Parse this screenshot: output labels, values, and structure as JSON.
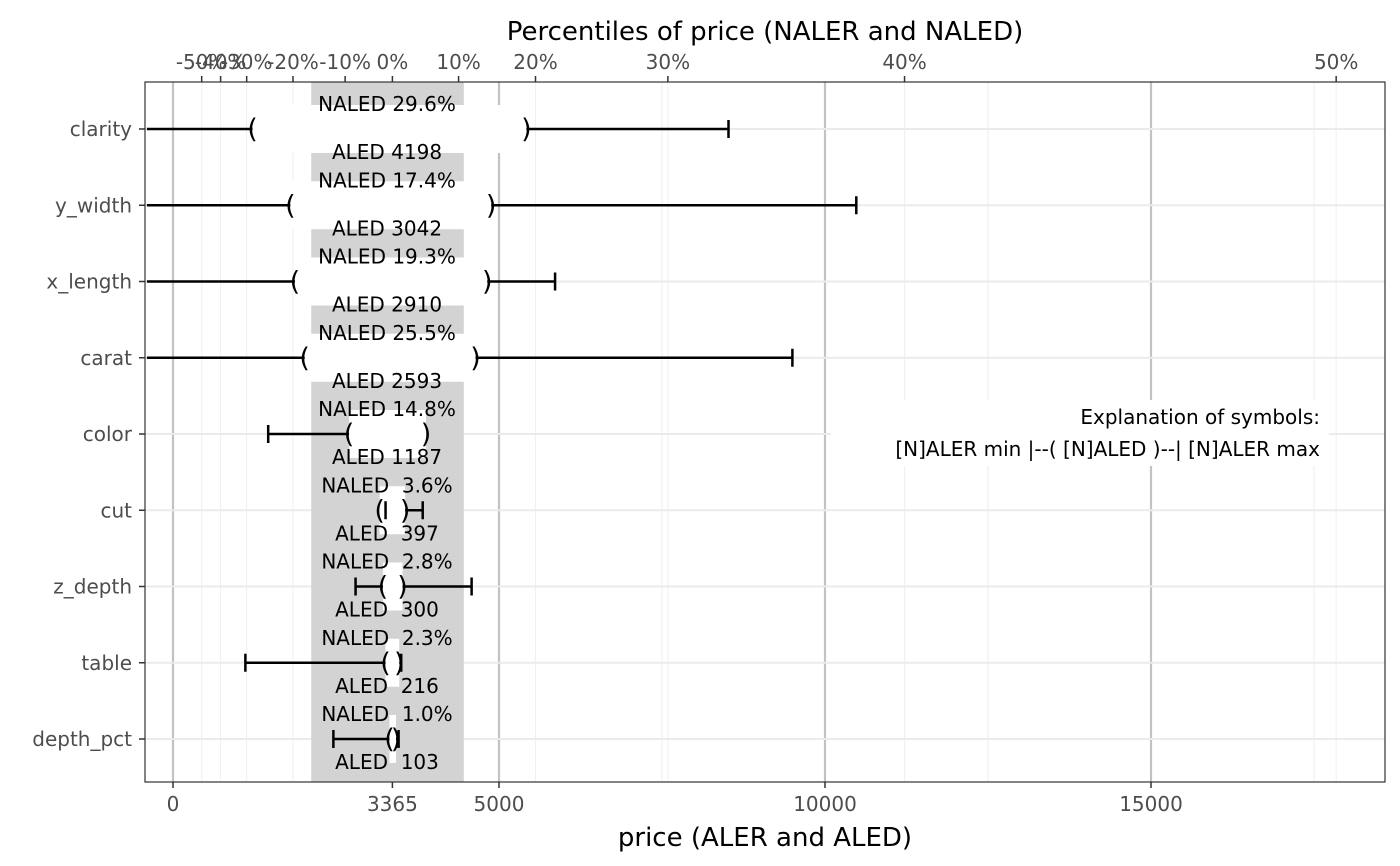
{
  "chart_data": {
    "type": "ale_range",
    "title": "Percentiles of price (NALER and NALED)",
    "xlabel": "price (ALER and ALED)",
    "xlim": [
      -400,
      18600
    ],
    "x_ticks": [
      0,
      3365,
      5000,
      10000,
      15000
    ],
    "x_tick_labels": [
      "0",
      "3365",
      "5000",
      "10000",
      "15000"
    ],
    "major_grid_x": [
      0,
      5000,
      10000,
      15000
    ],
    "minor_grid_x": [
      2500,
      7500,
      12500,
      17500
    ],
    "median": 3365,
    "aled_band": [
      2120,
      4460
    ],
    "top_ticks": [
      {
        "label": "-50%",
        "value": 440
      },
      {
        "label": "-40%",
        "value": 730
      },
      {
        "label": "-30%",
        "value": 1130
      },
      {
        "label": "-20%",
        "value": 1840
      },
      {
        "label": "-10%",
        "value": 2640
      },
      {
        "label": "0%",
        "value": 3365
      },
      {
        "label": "10%",
        "value": 4380
      },
      {
        "label": "20%",
        "value": 5560
      },
      {
        "label": "30%",
        "value": 7590
      },
      {
        "label": "40%",
        "value": 11220
      },
      {
        "label": "50%",
        "value": 17840
      }
    ],
    "rows": [
      {
        "feature": "clarity",
        "aler_min": -400,
        "aler_max": 8520,
        "aled_low": 1220,
        "aled_high": 5420,
        "naled_label": "NALED 29.6%",
        "aled_label": "ALED 4198"
      },
      {
        "feature": "y_width",
        "aler_min": -400,
        "aler_max": 10480,
        "aled_low": 1800,
        "aled_high": 4880,
        "naled_label": "NALED 17.4%",
        "aled_label": "ALED 3042"
      },
      {
        "feature": "x_length",
        "aler_min": -400,
        "aler_max": 5860,
        "aled_low": 1870,
        "aled_high": 4820,
        "naled_label": "NALED 19.3%",
        "aled_label": "ALED 2910"
      },
      {
        "feature": "carat",
        "aler_min": -400,
        "aler_max": 9500,
        "aled_low": 2020,
        "aled_high": 4640,
        "naled_label": "NALED 25.5%",
        "aled_label": "ALED 2593"
      },
      {
        "feature": "color",
        "aler_min": 1460,
        "aler_max": 1460,
        "aled_low": 2700,
        "aled_high": 3880,
        "naled_label": "NALED 14.8%",
        "aled_label": "ALED 1187"
      },
      {
        "feature": "cut",
        "aler_min": 3260,
        "aler_max": 3830,
        "aled_low": 3170,
        "aled_high": 3560,
        "naled_label": "NALED  3.6%",
        "aled_label": "ALED  397"
      },
      {
        "feature": "z_depth",
        "aler_min": 2800,
        "aler_max": 4580,
        "aled_low": 3220,
        "aled_high": 3520,
        "naled_label": "NALED  2.8%",
        "aled_label": "ALED  300"
      },
      {
        "feature": "table",
        "aler_min": 1110,
        "aler_max": 3500,
        "aled_low": 3260,
        "aled_high": 3470,
        "naled_label": "NALED  2.3%",
        "aled_label": "ALED  216"
      },
      {
        "feature": "depth_pct",
        "aler_min": 2460,
        "aler_max": 3460,
        "aled_low": 3320,
        "aled_high": 3420,
        "naled_label": "NALED  1.0%",
        "aled_label": "ALED  103"
      }
    ],
    "legend": {
      "title": "Explanation of symbols:",
      "text": "[N]ALER min |--( [N]ALED )--| [N]ALER max",
      "placement": "right"
    }
  }
}
